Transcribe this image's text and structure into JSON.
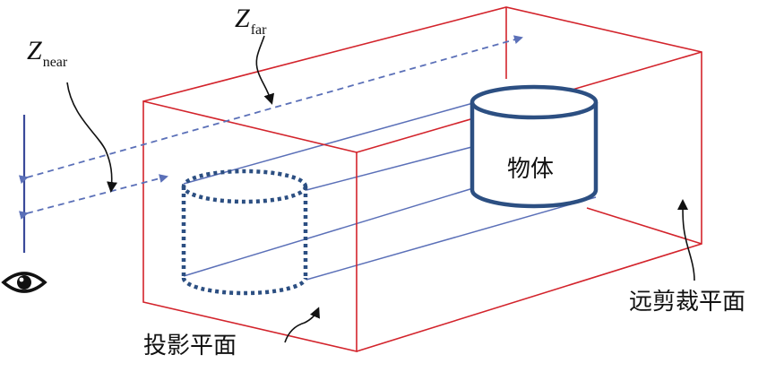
{
  "labels": {
    "z_near": "Z",
    "z_near_sub": "near",
    "z_far": "Z",
    "z_far_sub": "far",
    "object": "物体",
    "far_clip_plane": "远剪裁平面",
    "projection_plane": "投影平面"
  },
  "icons": {
    "viewer": "eye-icon"
  },
  "colors": {
    "frustum": "#d3242c",
    "projection_lines": "#5b70b8",
    "depth_arrows": "#5b70b8",
    "cylinder": "#2c4f82",
    "text": "#111111"
  }
}
